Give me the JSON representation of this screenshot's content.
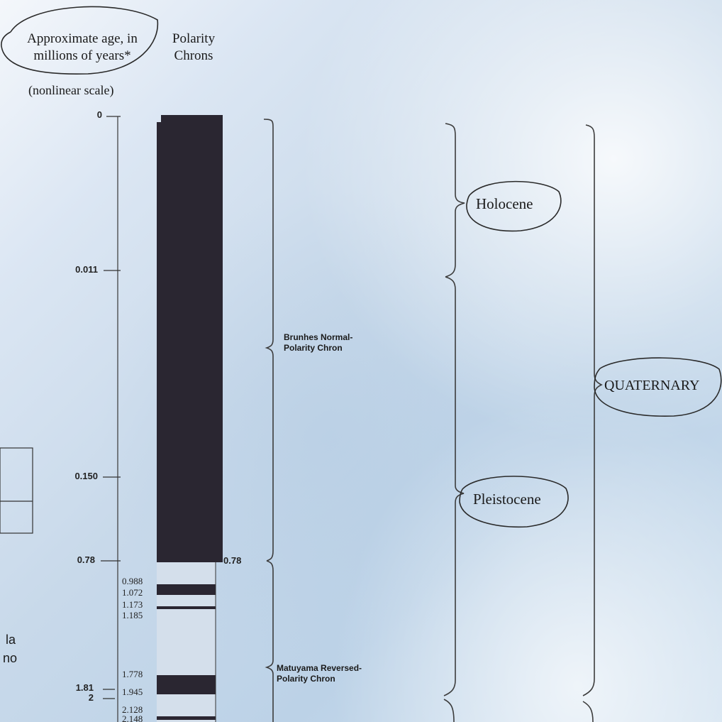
{
  "headers": {
    "age_line1": "Approximate age, in",
    "age_line2": "millions of years*",
    "polarity_line1": "Polarity",
    "polarity_line2": "Chrons",
    "scale_note": "(nonlinear scale)"
  },
  "age_ticks": [
    {
      "label": "0",
      "value": 0
    },
    {
      "label": "0.011",
      "value": 0.011
    },
    {
      "label": "0.150",
      "value": 0.15
    },
    {
      "label": "0.78",
      "value": 0.78
    },
    {
      "label": "1.81",
      "value": 1.81
    },
    {
      "label": "2",
      "value": 2
    }
  ],
  "polarity_column": {
    "normal_color": "#2a2631",
    "reversed_color": "#d5dfeb",
    "boundary_label": "0.78",
    "reversal_labels": [
      "0.988",
      "1.072",
      "1.173",
      "1.185",
      "1.778",
      "1.945",
      "2.128",
      "2.148"
    ],
    "normal_events": [
      {
        "start": 0,
        "end": 0.78
      },
      {
        "start": 0.988,
        "end": 1.072
      },
      {
        "start": 1.173,
        "end": 1.185
      },
      {
        "start": 1.778,
        "end": 1.945
      },
      {
        "start": 2.128,
        "end": 2.148
      }
    ]
  },
  "chrons": [
    {
      "line1": "Brunhes Normal-",
      "line2": "Polarity Chron"
    },
    {
      "line1": "Matuyama Reversed-",
      "line2": "Polarity Chron"
    }
  ],
  "epochs": [
    {
      "label": "Holocene"
    },
    {
      "label": "Pleistocene"
    }
  ],
  "period": {
    "label": "QUATERNARY"
  },
  "partial_left_text": {
    "line1": "la",
    "line2": "no"
  },
  "colors": {
    "ink": "#1a1a1a",
    "background": "#cfdeee"
  }
}
